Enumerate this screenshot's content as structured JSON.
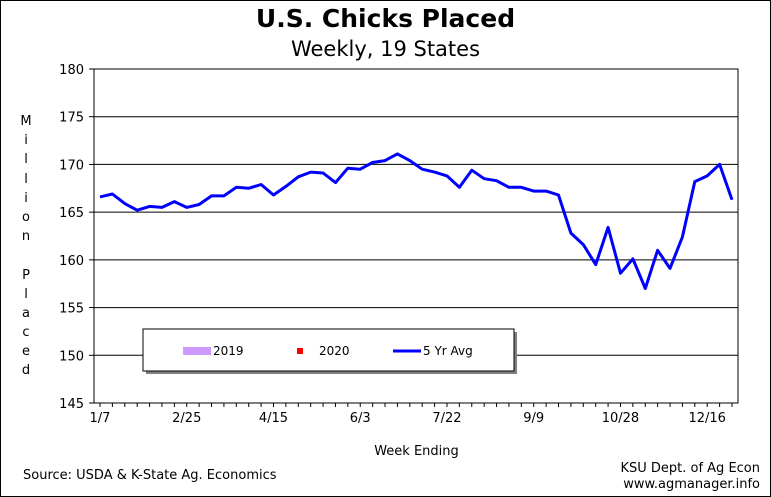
{
  "chart_data": {
    "type": "line",
    "title": "U.S. Chicks Placed",
    "subtitle": "Weekly, 19 States",
    "xlabel": "Week Ending",
    "ylabel": "Million Placed",
    "ylim": [
      145,
      180
    ],
    "yticks": [
      145,
      150,
      155,
      160,
      165,
      170,
      175,
      180
    ],
    "xtick_labels": [
      "1/7",
      "2/25",
      "4/15",
      "6/3",
      "7/22",
      "9/9",
      "10/28",
      "12/16"
    ],
    "grid": "horizontal",
    "legend_placement": "bottom-left",
    "series": [
      {
        "name": "2019",
        "color": "#cc99ff",
        "marker": "bar",
        "values": []
      },
      {
        "name": "2020",
        "color": "#ff0000",
        "marker": "square",
        "values": []
      },
      {
        "name": "5 Yr Avg",
        "color": "#0000ff",
        "week": [
          1,
          2,
          3,
          4,
          5,
          6,
          7,
          8,
          9,
          10,
          11,
          12,
          13,
          14,
          15,
          16,
          17,
          18,
          19,
          20,
          21,
          22,
          23,
          24,
          25,
          26,
          27,
          28,
          29,
          30,
          31,
          32,
          33,
          34,
          35,
          36,
          37,
          38,
          39,
          40,
          41,
          42,
          43,
          44,
          45,
          46,
          47,
          48,
          49,
          50,
          51,
          52
        ],
        "values": [
          166.6,
          166.9,
          165.9,
          165.2,
          165.6,
          165.5,
          166.1,
          165.5,
          165.8,
          166.7,
          166.7,
          167.6,
          167.5,
          167.9,
          166.8,
          167.7,
          168.7,
          169.2,
          169.1,
          168.1,
          169.6,
          169.5,
          170.2,
          170.4,
          171.1,
          170.4,
          169.5,
          169.2,
          168.8,
          167.6,
          169.4,
          168.5,
          168.3,
          167.6,
          167.6,
          167.2,
          167.2,
          166.8,
          162.8,
          161.6,
          159.5,
          163.4,
          158.6,
          160.1,
          157.0,
          161.0,
          159.1,
          162.4,
          168.2,
          168.8,
          170.0,
          166.3
        ]
      }
    ]
  },
  "footer": {
    "source": "Source:  USDA & K-State Ag. Economics",
    "credit_line1": "KSU Dept. of Ag Econ",
    "credit_line2": "www.agmanager.info"
  }
}
